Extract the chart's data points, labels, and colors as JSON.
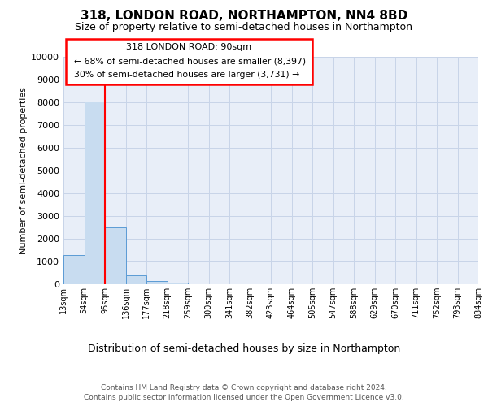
{
  "title": "318, LONDON ROAD, NORTHAMPTON, NN4 8BD",
  "subtitle": "Size of property relative to semi-detached houses in Northampton",
  "xlabel": "Distribution of semi-detached houses by size in Northampton",
  "ylabel": "Number of semi-detached properties",
  "bin_labels": [
    "13sqm",
    "54sqm",
    "95sqm",
    "136sqm",
    "177sqm",
    "218sqm",
    "259sqm",
    "300sqm",
    "341sqm",
    "382sqm",
    "423sqm",
    "464sqm",
    "505sqm",
    "547sqm",
    "588sqm",
    "629sqm",
    "670sqm",
    "711sqm",
    "752sqm",
    "793sqm",
    "834sqm"
  ],
  "bar_heights": [
    1300,
    8050,
    2500,
    400,
    130,
    80,
    0,
    0,
    0,
    0,
    0,
    0,
    0,
    0,
    0,
    0,
    0,
    0,
    0,
    0
  ],
  "bar_color": "#c8dcf0",
  "bar_edge_color": "#5b9bd5",
  "property_line_x": 2,
  "annotation_text_line1": "318 LONDON ROAD: 90sqm",
  "annotation_text_line2": "← 68% of semi-detached houses are smaller (8,397)",
  "annotation_text_line3": "30% of semi-detached houses are larger (3,731) →",
  "ylim": [
    0,
    10000
  ],
  "yticks": [
    0,
    1000,
    2000,
    3000,
    4000,
    5000,
    6000,
    7000,
    8000,
    9000,
    10000
  ],
  "grid_color": "#c8d4e8",
  "background_color": "#e8eef8",
  "footer_line1": "Contains HM Land Registry data © Crown copyright and database right 2024.",
  "footer_line2": "Contains public sector information licensed under the Open Government Licence v3.0."
}
